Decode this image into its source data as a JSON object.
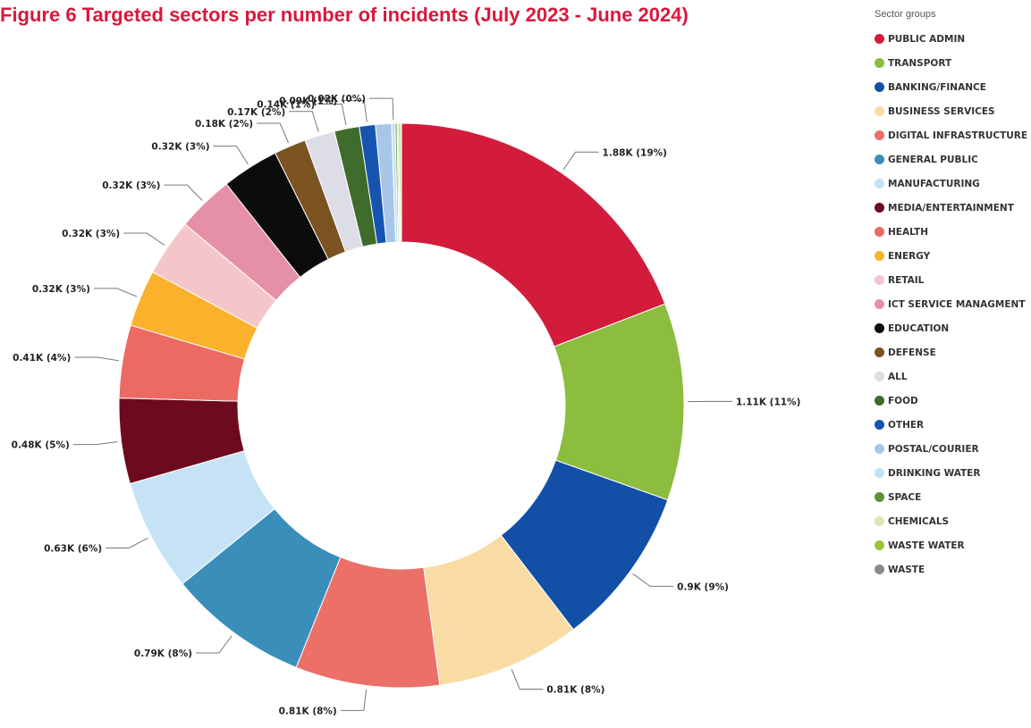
{
  "title": "Figure 6 Targeted sectors per number of incidents (July 2023 - June 2024)",
  "legend_title": "Sector groups",
  "chart_data": {
    "type": "pie",
    "donut": true,
    "title": "Figure 6 Targeted sectors per number of incidents (July 2023 - June 2024)",
    "legend_title": "Sector groups",
    "legend_position": "right",
    "slices": [
      {
        "name": "PUBLIC ADMIN",
        "value": 1.88,
        "label": "1.88K (19%)",
        "color": "#d31b3b"
      },
      {
        "name": "TRANSPORT",
        "value": 1.11,
        "label": "1.11K (11%)",
        "color": "#8cbd3f"
      },
      {
        "name": "BANKING/FINANCE",
        "value": 0.9,
        "label": "0.9K (9%)",
        "color": "#1250a8"
      },
      {
        "name": "BUSINESS SERVICES",
        "value": 0.81,
        "label": "0.81K (8%)",
        "color": "#f9dca4"
      },
      {
        "name": "DIGITAL INFRASTRUCTURE",
        "value": 0.81,
        "label": "0.81K (8%)",
        "color": "#eb7068"
      },
      {
        "name": "GENERAL PUBLIC",
        "value": 0.79,
        "label": "0.79K (8%)",
        "color": "#3a8fba"
      },
      {
        "name": "MANUFACTURING",
        "value": 0.63,
        "label": "0.63K (6%)",
        "color": "#c6e3f6"
      },
      {
        "name": "MEDIA/ENTERTAINMENT",
        "value": 0.48,
        "label": "0.48K (5%)",
        "color": "#6e0a1e"
      },
      {
        "name": "HEALTH",
        "value": 0.41,
        "label": "0.41K (4%)",
        "color": "#ec6a62"
      },
      {
        "name": "ENERGY",
        "value": 0.32,
        "label": "0.32K (3%)",
        "color": "#fbb12b"
      },
      {
        "name": "RETAIL",
        "value": 0.32,
        "label": "0.32K (3%)",
        "color": "#f5c6c9"
      },
      {
        "name": "ICT SERVICE MANAGMENT",
        "value": 0.32,
        "label": "0.32K (3%)",
        "color": "#e690a8"
      },
      {
        "name": "EDUCATION",
        "value": 0.32,
        "label": "0.32K (3%)",
        "color": "#0b0b0b"
      },
      {
        "name": "DEFENSE",
        "value": 0.18,
        "label": "0.18K (2%)",
        "color": "#7a5321"
      },
      {
        "name": "ALL",
        "value": 0.17,
        "label": "0.17K (2%)",
        "color": "#dcdde6"
      },
      {
        "name": "FOOD",
        "value": 0.14,
        "label": "0.14K (1%)",
        "color": "#3f6b2c"
      },
      {
        "name": "OTHER",
        "value": 0.09,
        "label": "0.09K (1%)",
        "color": "#1654b0"
      },
      {
        "name": "POSTAL/COURIER",
        "value": 0.09,
        "label": "",
        "color": "#a8c6e8"
      },
      {
        "name": "DRINKING WATER",
        "value": 0.02,
        "label": "0.02K (0%)",
        "color": "#bfe3f5"
      },
      {
        "name": "SPACE",
        "value": 0.01,
        "label": "",
        "color": "#5f8f3a"
      },
      {
        "name": "CHEMICALS",
        "value": 0.01,
        "label": "",
        "color": "#dbe8b2"
      },
      {
        "name": "WASTE WATER",
        "value": 0.01,
        "label": "",
        "color": "#98c43c"
      },
      {
        "name": "WASTE",
        "value": 0.005,
        "label": "",
        "color": "#8a8a8a"
      }
    ]
  }
}
